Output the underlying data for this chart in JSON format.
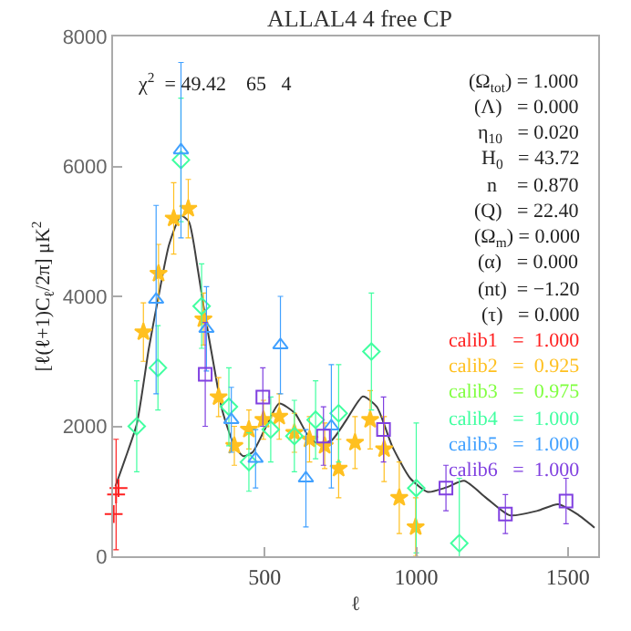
{
  "chart_data": {
    "type": "scatter",
    "title": "ALLAL4 4 free CP",
    "xlabel": "ℓ",
    "ylabel": "[ℓ(ℓ+1)C$_{ℓ}$/2π] μK$^{2}$",
    "xlim": [
      0,
      1600
    ],
    "xticks": [
      500,
      1000,
      1500
    ],
    "ylim": [
      0,
      8000
    ],
    "yticks": [
      0,
      2000,
      4000,
      6000,
      8000
    ],
    "grid": false,
    "legend": false,
    "annotations": [
      "χ$^{2}$  = 49.42    65   4",
      "(Ω$_{tot}$) = 1.000",
      "(Λ)   = 0.000",
      "η$_{10}$   = 0.020",
      "H$_{0}$   = 43.72",
      "n    = 0.870",
      "(Q)   = 22.40",
      "(Ω$_{m}$) = 0.000",
      "(α)   = 0.000",
      "(nt)  = −1.20",
      "(τ)   = 0.000"
    ],
    "series": [
      {
        "type": "line",
        "color": "#404040",
        "x": [
          8,
          40,
          78,
          118,
          150,
          185,
          224,
          250,
          280,
          300,
          330,
          360,
          400,
          430,
          460,
          500,
          548,
          600,
          640,
          672,
          720,
          770,
          824,
          870,
          920,
          980,
          1038,
          1100,
          1158,
          1230,
          1308,
          1400,
          1468,
          1530,
          1588
        ],
        "values": [
          1080,
          1500,
          2030,
          3200,
          4000,
          4800,
          5240,
          5150,
          4400,
          3800,
          3000,
          2250,
          1700,
          1540,
          1600,
          1950,
          2350,
          2200,
          1880,
          1740,
          1780,
          2100,
          2460,
          2300,
          1700,
          1200,
          990,
          1060,
          1160,
          900,
          630,
          700,
          800,
          650,
          440
        ]
      },
      {
        "name": "calib1   =  1.000",
        "color": "#ff2020",
        "marker": "cross",
        "x": [
          2,
          10,
          18
        ],
        "values": [
          650,
          950,
          1050
        ],
        "errors": [
          null,
          850,
          null
        ]
      },
      {
        "name": "calib2   =  0.925",
        "color": "#ffc020",
        "marker": "star",
        "x": [
          100,
          150,
          200,
          248,
          298,
          348,
          400,
          448,
          496,
          548,
          598,
          648,
          698,
          744,
          798,
          848,
          894,
          944,
          998
        ],
        "values": [
          3450,
          4350,
          5200,
          5350,
          3650,
          2450,
          1700,
          1950,
          2100,
          2150,
          1900,
          1800,
          1700,
          1350,
          1750,
          2100,
          1650,
          900,
          450
        ],
        "errors": [
          450,
          450,
          550,
          450,
          400,
          300,
          300,
          300,
          300,
          350,
          300,
          350,
          350,
          450,
          400,
          450,
          500,
          550,
          450
        ]
      },
      {
        "name": "calib3   =  0.975",
        "color": "#80ff40"
      },
      {
        "name": "calib4   =  1.000",
        "color": "#40ffa0",
        "marker": "diamond",
        "x": [
          78,
          148,
          224,
          292,
          382,
          448,
          520,
          598,
          668,
          744,
          852,
          1000,
          1142
        ],
        "values": [
          2000,
          2900,
          6100,
          3850,
          2300,
          1450,
          1950,
          1850,
          2100,
          2200,
          3150,
          1050,
          200
        ],
        "errors": [
          700,
          650,
          950,
          650,
          600,
          450,
          500,
          550,
          600,
          750,
          900,
          1000,
          1000
        ]
      },
      {
        "name": "calib5   =  1.000",
        "color": "#40a0ff",
        "marker": "triangle",
        "x": [
          142,
          224,
          308,
          390,
          470,
          552,
          636,
          720
        ],
        "values": [
          3950,
          6250,
          3500,
          2100,
          1500,
          3250,
          1200,
          2000
        ],
        "errors": [
          1450,
          1350,
          650,
          500,
          450,
          750,
          750,
          950
        ]
      },
      {
        "name": "calib6   =  1.000",
        "color": "#8040e0",
        "marker": "square",
        "x": [
          304,
          494,
          694,
          892,
          1098,
          1294,
          1494
        ],
        "values": [
          2800,
          2450,
          1850,
          1950,
          1050,
          650,
          850
        ],
        "errors": [
          800,
          450,
          450,
          500,
          350,
          300,
          350
        ]
      }
    ]
  }
}
